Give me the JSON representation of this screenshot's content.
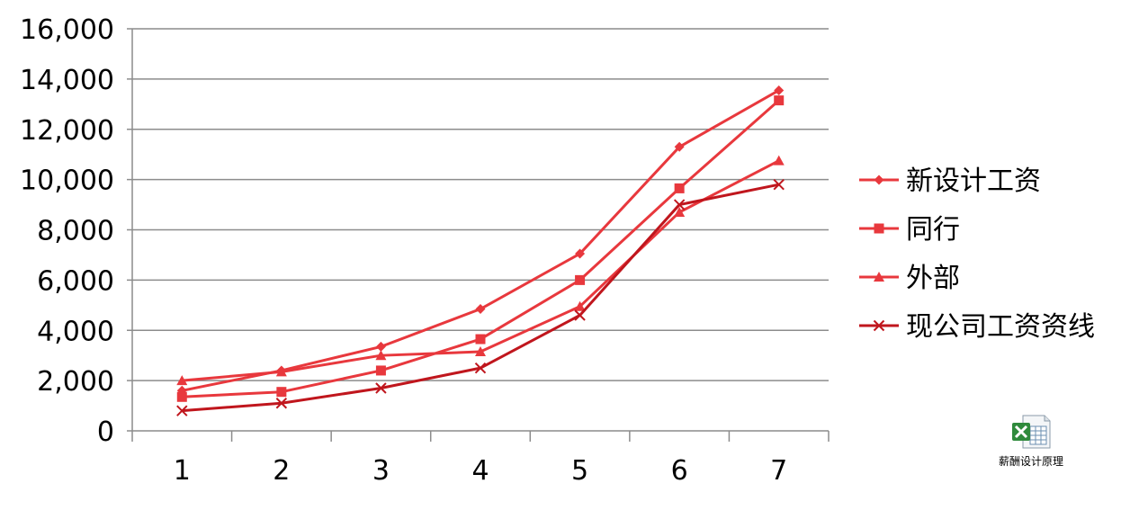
{
  "chart_data": {
    "type": "line",
    "x": [
      1,
      2,
      3,
      4,
      5,
      6,
      7
    ],
    "ylim": [
      0,
      16000
    ],
    "yticks": [
      0,
      2000,
      4000,
      6000,
      8000,
      10000,
      12000,
      14000,
      16000
    ],
    "ytick_labels": [
      "0",
      "2,000",
      "4,000",
      "6,000",
      "8,000",
      "10,000",
      "12,000",
      "14,000",
      "16,000"
    ],
    "xtick_labels": [
      "1",
      "2",
      "3",
      "4",
      "5",
      "6",
      "7"
    ],
    "grid": "horizontal",
    "legend_position": "right",
    "series": [
      {
        "name": "新设计工资",
        "marker": "diamond",
        "color": "#e8383d",
        "values": [
          1600,
          2400,
          3350,
          4850,
          7050,
          11300,
          13550
        ]
      },
      {
        "name": "同行",
        "marker": "square",
        "color": "#e8383d",
        "values": [
          1350,
          1550,
          2400,
          3650,
          6000,
          9650,
          13150
        ]
      },
      {
        "name": "外部",
        "marker": "triangle",
        "color": "#e8383d",
        "values": [
          2000,
          2350,
          3000,
          3150,
          4950,
          8700,
          10750
        ]
      },
      {
        "name": "现公司工资资线",
        "marker": "x",
        "color": "#c0161d",
        "values": [
          800,
          1100,
          1700,
          2500,
          4600,
          9000,
          9800
        ]
      }
    ]
  },
  "desktop_icon": {
    "label": "薪酬设计原理",
    "icon": "excel-file-icon"
  }
}
